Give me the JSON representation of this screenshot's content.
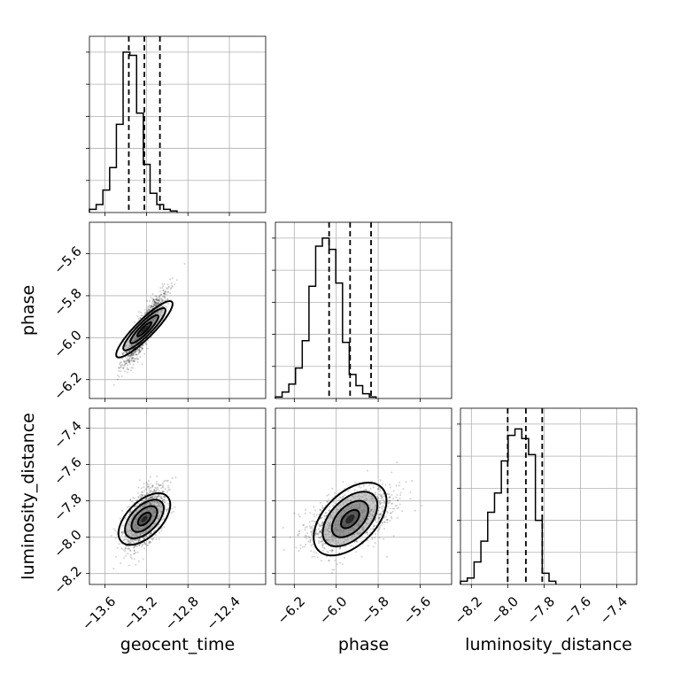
{
  "chart_data": {
    "type": "corner",
    "parameters": [
      "geocent_time",
      "phase",
      "luminosity_distance"
    ],
    "ranges": {
      "geocent_time": [
        -13.75,
        -12.05
      ],
      "phase": [
        -6.29,
        -5.45
      ],
      "luminosity_distance": [
        -8.26,
        -7.29
      ]
    },
    "ticks": {
      "geocent_time": [
        -13.6,
        -13.2,
        -12.8,
        -12.4
      ],
      "phase": [
        -6.2,
        -6.0,
        -5.8,
        -5.6
      ],
      "luminosity_distance": [
        -8.2,
        -8.0,
        -7.8,
        -7.6,
        -7.4
      ]
    },
    "tick_labels": {
      "geocent_time": [
        "−13.6",
        "−13.2",
        "−12.8",
        "−12.4"
      ],
      "phase": [
        "−6.2",
        "−6.0",
        "−5.8",
        "−5.6"
      ],
      "luminosity_distance": [
        "−8.2",
        "−8.0",
        "−7.8",
        "−7.6",
        "−7.4"
      ]
    },
    "grid": true,
    "histograms": {
      "geocent_time": {
        "bin_width": 0.065,
        "edges_start": -13.75,
        "counts": [
          0.02,
          0.05,
          0.14,
          0.28,
          0.55,
          1.0,
          0.98,
          0.62,
          0.3,
          0.12,
          0.05,
          0.02,
          0.01
        ],
        "quantiles": [
          -13.37,
          -13.22,
          -13.07
        ]
      },
      "phase": {
        "bin_width": 0.032,
        "edges_start": -6.29,
        "counts": [
          0.01,
          0.04,
          0.09,
          0.19,
          0.36,
          0.7,
          0.95,
          1.0,
          0.93,
          0.72,
          0.35,
          0.15,
          0.08,
          0.03,
          0.01
        ],
        "quantiles": [
          -6.034,
          -5.934,
          -5.834
        ]
      },
      "luminosity_distance": {
        "bin_width": 0.0375,
        "edges_start": -8.26,
        "counts": [
          0.02,
          0.04,
          0.14,
          0.27,
          0.45,
          0.57,
          0.77,
          0.93,
          0.97,
          0.91,
          0.81,
          0.4,
          0.07,
          0.02
        ],
        "quantiles": [
          -8.0,
          -7.9,
          -7.81
        ]
      }
    },
    "pairs": [
      {
        "x": "geocent_time",
        "y": "phase",
        "mean": [
          -13.22,
          -5.96
        ],
        "sd": [
          0.1,
          0.085
        ],
        "rho": 0.9,
        "contour_levels": [
          0.5,
          1.0,
          1.5,
          2.0
        ]
      },
      {
        "x": "geocent_time",
        "y": "luminosity_distance",
        "mean": [
          -13.22,
          -7.9
        ],
        "sd": [
          0.1,
          0.085
        ],
        "rho": 0.55,
        "contour_levels": [
          0.5,
          1.0,
          1.5,
          2.0
        ]
      },
      {
        "x": "phase",
        "y": "luminosity_distance",
        "mean": [
          -5.934,
          -7.9
        ],
        "sd": [
          0.1,
          0.085
        ],
        "rho": 0.5,
        "contour_levels": [
          0.5,
          1.0,
          1.5,
          2.0
        ]
      }
    ]
  }
}
